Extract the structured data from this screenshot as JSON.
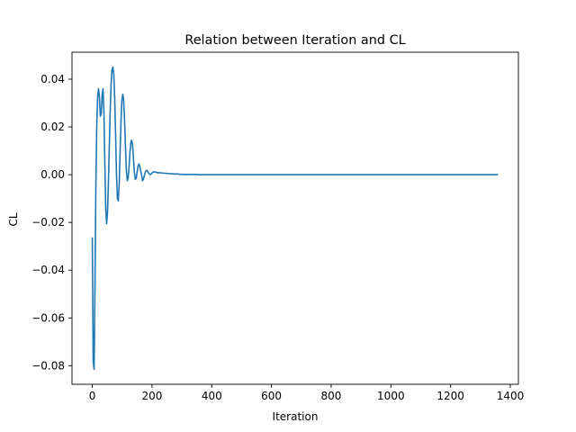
{
  "chart_data": {
    "type": "line",
    "title": "Relation between Iteration and CL",
    "xlabel": "Iteration",
    "ylabel": "CL",
    "xlim": [
      -68,
      1427
    ],
    "ylim": [
      -0.0878,
      0.0513
    ],
    "xticks": [
      0,
      200,
      400,
      600,
      800,
      1000,
      1200,
      1400
    ],
    "xtick_labels": [
      "0",
      "200",
      "400",
      "600",
      "800",
      "1000",
      "1200",
      "1400"
    ],
    "yticks": [
      0.04,
      0.02,
      0.0,
      -0.02,
      -0.04,
      -0.06,
      -0.08
    ],
    "ytick_labels": [
      "0.04",
      "0.02",
      "0.00",
      "−0.02",
      "−0.04",
      "−0.06",
      "−0.08"
    ],
    "grid": false,
    "line_color": "#1f77b4",
    "series": [
      {
        "x": [
          0,
          3,
          6,
          9,
          12,
          15,
          18,
          21,
          24,
          27,
          30,
          33,
          36,
          39,
          42,
          45,
          48,
          51,
          54,
          57,
          60,
          63,
          66,
          69,
          72,
          75,
          78,
          81,
          84,
          87,
          90,
          93,
          96,
          99,
          102,
          105,
          108,
          111,
          114,
          117,
          120,
          123,
          126,
          129,
          132,
          135,
          138,
          141,
          144,
          147,
          150,
          153,
          156,
          159,
          162,
          165,
          168,
          171,
          174,
          177,
          180,
          183,
          186,
          189,
          192,
          195,
          198,
          201,
          204,
          207,
          210,
          213,
          216,
          219,
          222,
          225,
          228,
          231,
          234,
          237,
          240,
          243,
          246,
          249,
          252,
          255,
          258,
          261,
          264,
          267,
          270,
          273,
          276,
          279,
          282,
          285,
          288,
          291,
          294,
          300,
          320,
          340,
          360,
          380,
          400,
          450,
          500,
          600,
          700,
          800,
          900,
          1000,
          1100,
          1200,
          1300,
          1357
        ],
        "y": [
          -0.0265,
          -0.078,
          -0.0815,
          -0.046,
          -0.004,
          0.021,
          0.033,
          0.036,
          0.032,
          0.0245,
          0.0255,
          0.0335,
          0.036,
          0.026,
          0.005,
          -0.014,
          -0.0205,
          -0.0155,
          -0.003,
          0.012,
          0.027,
          0.038,
          0.044,
          0.045,
          0.042,
          0.032,
          0.017,
          0.0,
          -0.01,
          -0.011,
          -0.004,
          0.009,
          0.022,
          0.031,
          0.0337,
          0.031,
          0.023,
          0.012,
          0.002,
          -0.0025,
          -0.0015,
          0.003,
          0.009,
          0.0135,
          0.0145,
          0.012,
          0.0065,
          0.001,
          -0.002,
          -0.0015,
          0.001,
          0.0035,
          0.0045,
          0.0035,
          0.0015,
          0.0,
          -0.0025,
          -0.002,
          -0.0005,
          0.0008,
          0.0016,
          0.0018,
          0.0012,
          0.0006,
          0.0002,
          0.0001,
          0.0004,
          0.0008,
          0.0011,
          0.0012,
          0.0011,
          0.001,
          0.0009,
          0.0008,
          0.0008,
          0.0008,
          0.0008,
          0.0007,
          0.0007,
          0.0007,
          0.0006,
          0.0006,
          0.0006,
          0.0005,
          0.0005,
          0.0005,
          0.0005,
          0.0004,
          0.0004,
          0.0004,
          0.0004,
          0.0003,
          0.0003,
          0.0003,
          0.0003,
          0.0003,
          0.0002,
          0.0002,
          0.0002,
          0.0001,
          0.0001,
          0.0001,
          0.0,
          0.0,
          0.0,
          0.0,
          0.0,
          0.0,
          0.0,
          0.0,
          0.0,
          0.0,
          0.0,
          0.0,
          0.0,
          0.0
        ]
      }
    ]
  }
}
